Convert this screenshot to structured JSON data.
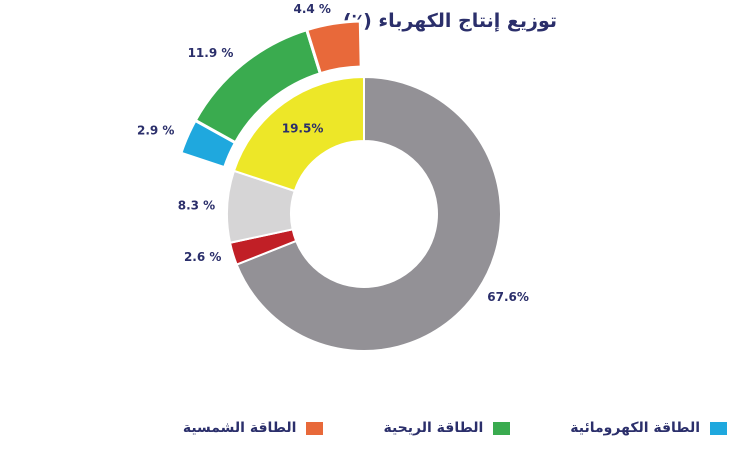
{
  "chart_data": {
    "type": "donut",
    "title": "توزيع إنتاج الكهرباء (٪)",
    "series": [
      {
        "value": 67.6,
        "label": "67.6%",
        "color": "#939196"
      },
      {
        "value": 2.6,
        "label": "2.6 %",
        "color": "#c11f26"
      },
      {
        "value": 8.3,
        "label": "8.3 %",
        "color": "#d6d5d6"
      },
      {
        "value": 19.5,
        "label": "19.5%",
        "color": "#ede728",
        "breakdown": [
          {
            "value": 2.9,
            "label": "2.9 %",
            "color": "#1fa8de"
          },
          {
            "value": 11.9,
            "label": "11.9 %",
            "color": "#3aab4f"
          },
          {
            "value": 4.4,
            "label": "4.4 %",
            "color": "#e8693a"
          }
        ]
      }
    ],
    "legend": [
      {
        "name": "الطاقة الشمسية",
        "color": "#e8693a"
      },
      {
        "name": "الطاقة الريحية",
        "color": "#3aab4f"
      },
      {
        "name": "الطاقة الكهرومائية",
        "color": "#1fa8de"
      }
    ]
  }
}
